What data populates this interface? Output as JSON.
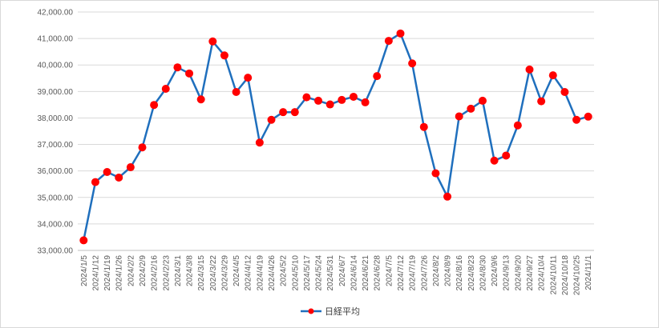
{
  "chart_data": {
    "type": "line",
    "title": "",
    "xlabel": "",
    "ylabel": "",
    "ylim": [
      33000,
      42000
    ],
    "y_ticks": [
      "33,000.00",
      "34,000.00",
      "35,000.00",
      "36,000.00",
      "37,000.00",
      "38,000.00",
      "39,000.00",
      "40,000.00",
      "41,000.00",
      "42,000.00"
    ],
    "grid": "horizontal",
    "legend_position": "bottom",
    "colors": {
      "line": "#1f6fbd",
      "marker": "#ff0000",
      "grid": "#d9d9d9",
      "axis": "#bfbfbf"
    },
    "categories": [
      "2024/1/5",
      "2024/1/12",
      "2024/1/19",
      "2024/1/26",
      "2024/2/2",
      "2024/2/9",
      "2024/2/16",
      "2024/2/23",
      "2024/3/1",
      "2024/3/8",
      "2024/3/15",
      "2024/3/22",
      "2024/3/29",
      "2024/4/5",
      "2024/4/12",
      "2024/4/19",
      "2024/4/26",
      "2024/5/2",
      "2024/5/10",
      "2024/5/17",
      "2024/5/24",
      "2024/5/31",
      "2024/6/7",
      "2024/6/14",
      "2024/6/21",
      "2024/6/28",
      "2024/7/5",
      "2024/7/12",
      "2024/7/19",
      "2024/7/26",
      "2024/8/2",
      "2024/8/9",
      "2024/8/16",
      "2024/8/23",
      "2024/8/30",
      "2024/9/6",
      "2024/9/13",
      "2024/9/20",
      "2024/9/27",
      "2024/10/4",
      "2024/10/11",
      "2024/10/18",
      "2024/10/25",
      "2024/11/1"
    ],
    "series": [
      {
        "name": "日経平均",
        "values": [
          33380,
          35580,
          35960,
          35750,
          36140,
          36890,
          38490,
          39100,
          39910,
          39680,
          38700,
          40890,
          40360,
          38980,
          39520,
          37070,
          37930,
          38220,
          38220,
          38780,
          38650,
          38510,
          38680,
          38800,
          38590,
          39580,
          40910,
          41190,
          40060,
          37660,
          35910,
          35030,
          38060,
          38350,
          38650,
          36390,
          36580,
          37720,
          39830,
          38630,
          39610,
          38980,
          37930,
          38050
        ]
      }
    ]
  }
}
